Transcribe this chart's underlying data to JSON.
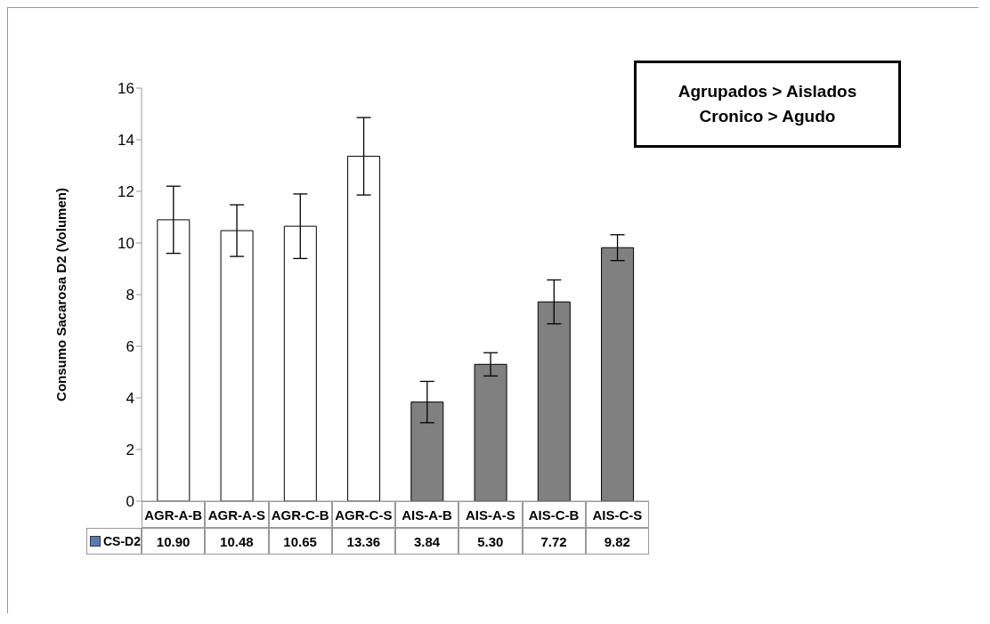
{
  "chart_data": {
    "type": "bar",
    "ylabel": "Consumo Sacarosa D2  (Volumen)",
    "categories": [
      "AGR-A-B",
      "AGR-A-S",
      "AGR-C-B",
      "AGR-C-S",
      "AIS-A-B",
      "AIS-A-S",
      "AIS-C-B",
      "AIS-C-S"
    ],
    "series": [
      {
        "name": "CS-D2",
        "color": "#5a7ab0",
        "colors": [
          "#ffffff",
          "#ffffff",
          "#ffffff",
          "#ffffff",
          "#808080",
          "#808080",
          "#808080",
          "#808080"
        ],
        "values": [
          10.9,
          10.48,
          10.65,
          13.36,
          3.84,
          5.3,
          7.72,
          9.82
        ],
        "errors": [
          1.3,
          1.0,
          1.25,
          1.5,
          0.8,
          0.45,
          0.85,
          0.5
        ],
        "value_labels": [
          "10.90",
          "10.48",
          "10.65",
          "13.36",
          "3.84",
          "5.30",
          "7.72",
          "9.82"
        ]
      }
    ],
    "ylim": [
      0,
      16
    ],
    "yticks": [
      0,
      2,
      4,
      6,
      8,
      10,
      12,
      14,
      16
    ],
    "grid": false,
    "legend": "bottom left",
    "annotations": [
      "Agrupados > Aislados",
      "Cronico > Agudo"
    ]
  }
}
